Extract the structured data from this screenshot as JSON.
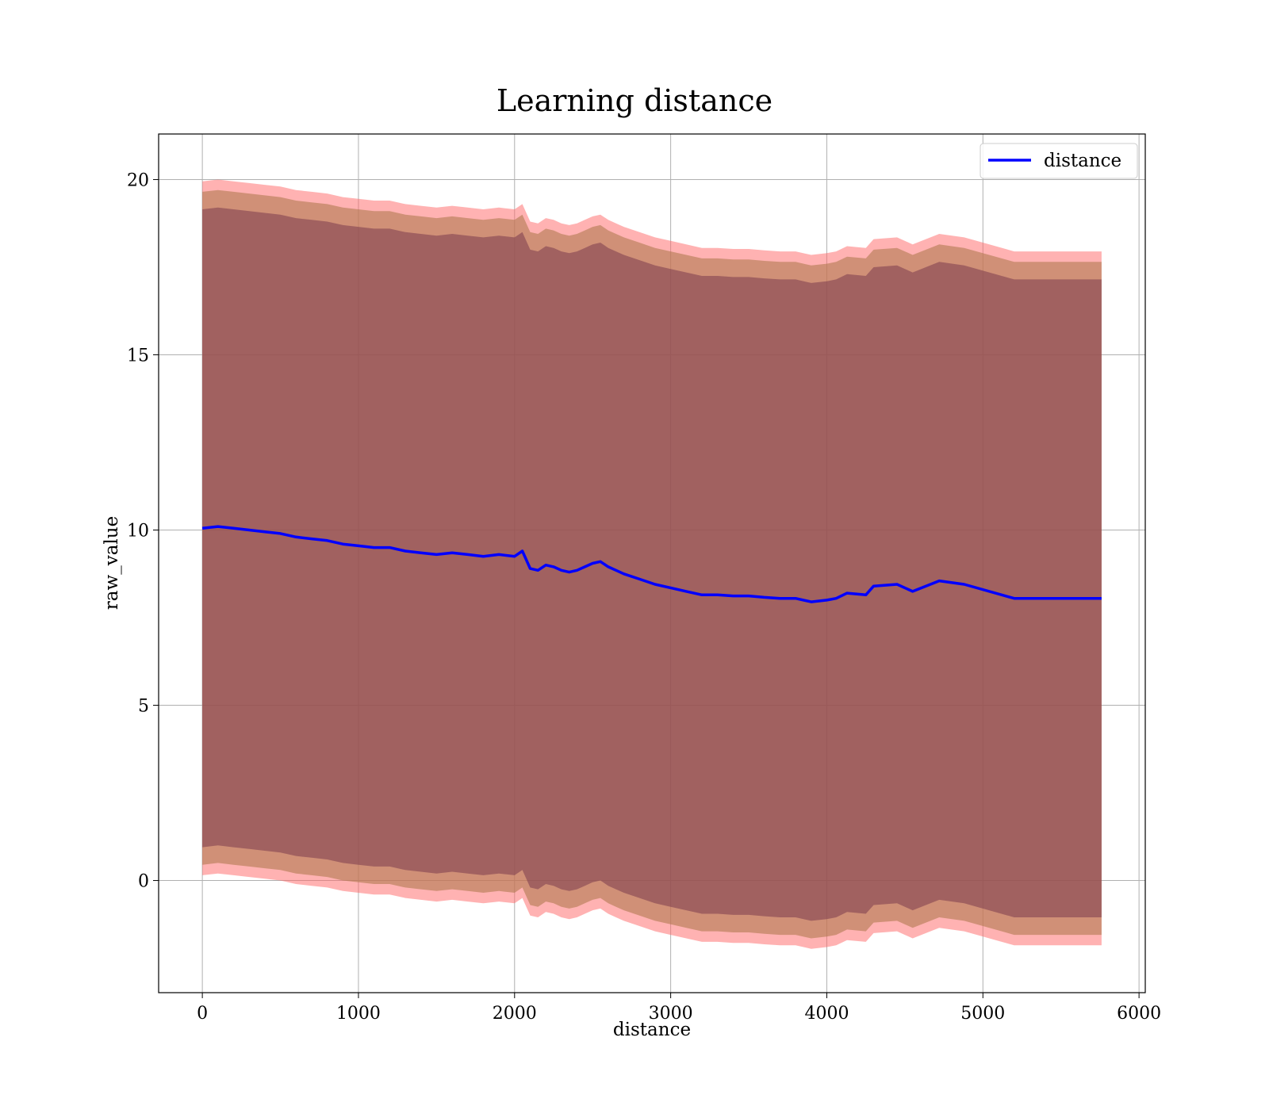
{
  "chart_data": {
    "type": "line",
    "title": "Learning distance",
    "xlabel": "distance",
    "ylabel": "raw_value",
    "xlim": [
      -280,
      6040
    ],
    "ylim": [
      -3.2,
      21.3
    ],
    "xticks": [
      0,
      1000,
      2000,
      3000,
      4000,
      5000,
      6000
    ],
    "yticks": [
      0,
      5,
      10,
      15,
      20
    ],
    "grid": true,
    "legend": {
      "position": "top-right",
      "entries": [
        "distance"
      ]
    },
    "colors": {
      "line": "#0000ff",
      "band_outer": "#ff6666",
      "band_middle": "#b07a50",
      "band_inner": "#7a3b4e"
    },
    "x": [
      0,
      100,
      200,
      300,
      400,
      500,
      600,
      700,
      800,
      900,
      1000,
      1100,
      1200,
      1300,
      1400,
      1500,
      1600,
      1700,
      1800,
      1900,
      2000,
      2050,
      2100,
      2150,
      2200,
      2250,
      2300,
      2350,
      2400,
      2450,
      2500,
      2550,
      2600,
      2650,
      2700,
      2800,
      2900,
      3000,
      3100,
      3200,
      3300,
      3400,
      3500,
      3600,
      3700,
      3800,
      3900,
      4000,
      4060,
      4130,
      4250,
      4300,
      4450,
      4550,
      4720,
      4880,
      5200,
      5760
    ],
    "series": [
      {
        "name": "distance",
        "values": [
          10.05,
          10.1,
          10.05,
          10.0,
          9.95,
          9.9,
          9.8,
          9.75,
          9.7,
          9.6,
          9.55,
          9.5,
          9.5,
          9.4,
          9.35,
          9.3,
          9.35,
          9.3,
          9.25,
          9.3,
          9.25,
          9.4,
          8.9,
          8.85,
          9.0,
          8.95,
          8.85,
          8.8,
          8.85,
          8.95,
          9.05,
          9.1,
          8.95,
          8.85,
          8.75,
          8.6,
          8.45,
          8.35,
          8.25,
          8.15,
          8.15,
          8.12,
          8.12,
          8.08,
          8.05,
          8.05,
          7.95,
          8.0,
          8.05,
          8.2,
          8.15,
          8.4,
          8.45,
          8.25,
          8.55,
          8.45,
          8.05,
          8.05
        ]
      }
    ],
    "bands": [
      {
        "level": "outer",
        "offset": 9.9
      },
      {
        "level": "middle",
        "offset": 9.6
      },
      {
        "level": "inner",
        "offset": 9.1
      }
    ]
  }
}
